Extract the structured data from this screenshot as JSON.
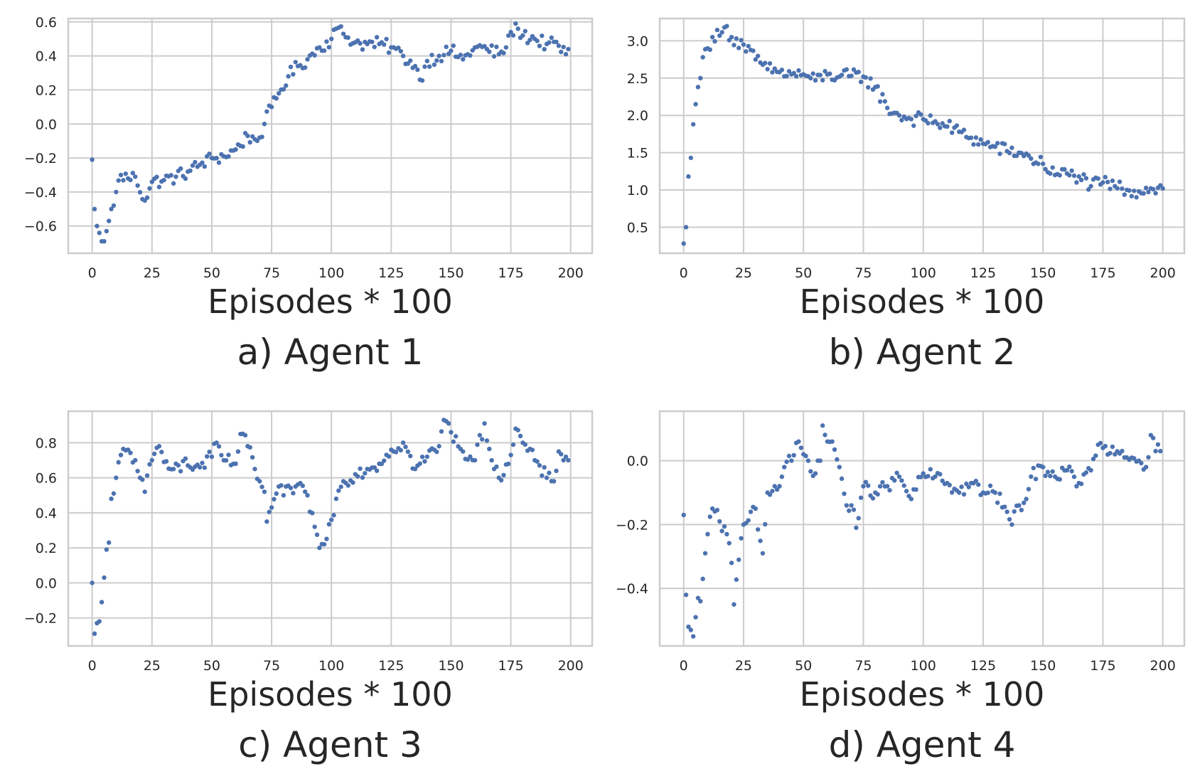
{
  "chart_data": [
    {
      "type": "scatter",
      "caption": "a) Agent 1",
      "xlabel": "Episodes * 100",
      "ylabel": "",
      "xlim": [
        -10,
        209
      ],
      "ylim": [
        -0.76,
        0.62
      ],
      "xticks": [
        0,
        25,
        50,
        75,
        100,
        125,
        150,
        175,
        200
      ],
      "xtick_labels": [
        "0",
        "25",
        "50",
        "75",
        "100",
        "125",
        "150",
        "175",
        "200"
      ],
      "yticks": [
        -0.6,
        -0.4,
        -0.2,
        0.0,
        0.2,
        0.4,
        0.6
      ],
      "ytick_labels": [
        "−0.6",
        "−0.4",
        "−0.2",
        "0.0",
        "0.2",
        "0.4",
        "0.6"
      ],
      "grid": true,
      "color": "#4c72b0",
      "key_points": [
        [
          0,
          -0.21
        ],
        [
          1,
          -0.5
        ],
        [
          2,
          -0.6
        ],
        [
          3,
          -0.64
        ],
        [
          4,
          -0.69
        ],
        [
          5,
          -0.69
        ],
        [
          6,
          -0.63
        ],
        [
          7,
          -0.57
        ],
        [
          8,
          -0.5
        ],
        [
          9,
          -0.48
        ],
        [
          10,
          -0.4
        ],
        [
          12,
          -0.3
        ],
        [
          15,
          -0.32
        ],
        [
          18,
          -0.31
        ],
        [
          22,
          -0.45
        ],
        [
          25,
          -0.34
        ],
        [
          30,
          -0.33
        ],
        [
          35,
          -0.31
        ],
        [
          40,
          -0.28
        ],
        [
          45,
          -0.24
        ],
        [
          50,
          -0.2
        ],
        [
          55,
          -0.19
        ],
        [
          60,
          -0.15
        ],
        [
          65,
          -0.07
        ],
        [
          68,
          -0.09
        ],
        [
          70,
          -0.08
        ],
        [
          72,
          0.0
        ],
        [
          75,
          0.1
        ],
        [
          78,
          0.18
        ],
        [
          82,
          0.28
        ],
        [
          86,
          0.34
        ],
        [
          90,
          0.38
        ],
        [
          95,
          0.45
        ],
        [
          100,
          0.5
        ],
        [
          102,
          0.56
        ],
        [
          105,
          0.53
        ],
        [
          110,
          0.48
        ],
        [
          115,
          0.47
        ],
        [
          120,
          0.47
        ],
        [
          125,
          0.45
        ],
        [
          130,
          0.4
        ],
        [
          135,
          0.34
        ],
        [
          137,
          0.26
        ],
        [
          140,
          0.37
        ],
        [
          145,
          0.4
        ],
        [
          150,
          0.43
        ],
        [
          155,
          0.38
        ],
        [
          160,
          0.45
        ],
        [
          165,
          0.44
        ],
        [
          170,
          0.41
        ],
        [
          173,
          0.45
        ],
        [
          175,
          0.54
        ],
        [
          178,
          0.56
        ],
        [
          180,
          0.52
        ],
        [
          185,
          0.5
        ],
        [
          190,
          0.47
        ],
        [
          195,
          0.46
        ],
        [
          198,
          0.41
        ],
        [
          199,
          0.44
        ]
      ]
    },
    {
      "type": "scatter",
      "caption": "b) Agent 2",
      "xlabel": "Episodes * 100",
      "ylabel": "",
      "xlim": [
        -10,
        209
      ],
      "ylim": [
        0.15,
        3.3
      ],
      "xticks": [
        0,
        25,
        50,
        75,
        100,
        125,
        150,
        175,
        200
      ],
      "xtick_labels": [
        "0",
        "25",
        "50",
        "75",
        "100",
        "125",
        "150",
        "175",
        "200"
      ],
      "yticks": [
        0.5,
        1.0,
        1.5,
        2.0,
        2.5,
        3.0
      ],
      "ytick_labels": [
        "0.5",
        "1.0",
        "1.5",
        "2.0",
        "2.5",
        "3.0"
      ],
      "grid": true,
      "color": "#4c72b0",
      "key_points": [
        [
          0,
          0.28
        ],
        [
          1,
          0.5
        ],
        [
          2,
          1.18
        ],
        [
          3,
          1.43
        ],
        [
          4,
          1.88
        ],
        [
          5,
          2.15
        ],
        [
          6,
          2.38
        ],
        [
          7,
          2.5
        ],
        [
          8,
          2.78
        ],
        [
          10,
          2.9
        ],
        [
          12,
          3.05
        ],
        [
          15,
          3.07
        ],
        [
          17,
          3.18
        ],
        [
          20,
          3.05
        ],
        [
          25,
          2.95
        ],
        [
          30,
          2.75
        ],
        [
          35,
          2.62
        ],
        [
          40,
          2.58
        ],
        [
          45,
          2.55
        ],
        [
          50,
          2.55
        ],
        [
          55,
          2.47
        ],
        [
          60,
          2.55
        ],
        [
          65,
          2.52
        ],
        [
          70,
          2.53
        ],
        [
          75,
          2.52
        ],
        [
          80,
          2.38
        ],
        [
          85,
          2.1
        ],
        [
          90,
          2.0
        ],
        [
          95,
          1.95
        ],
        [
          100,
          1.95
        ],
        [
          105,
          1.92
        ],
        [
          110,
          1.85
        ],
        [
          115,
          1.78
        ],
        [
          120,
          1.7
        ],
        [
          125,
          1.62
        ],
        [
          130,
          1.58
        ],
        [
          135,
          1.52
        ],
        [
          140,
          1.5
        ],
        [
          145,
          1.42
        ],
        [
          150,
          1.35
        ],
        [
          155,
          1.2
        ],
        [
          160,
          1.22
        ],
        [
          165,
          1.18
        ],
        [
          170,
          1.05
        ],
        [
          175,
          1.1
        ],
        [
          180,
          1.05
        ],
        [
          185,
          1.0
        ],
        [
          190,
          0.98
        ],
        [
          195,
          1.02
        ],
        [
          200,
          1.02
        ]
      ]
    },
    {
      "type": "scatter",
      "caption": "c) Agent 3",
      "xlabel": "Episodes * 100",
      "ylabel": "",
      "xlim": [
        -10,
        209
      ],
      "ylim": [
        -0.36,
        0.98
      ],
      "xticks": [
        0,
        25,
        50,
        75,
        100,
        125,
        150,
        175,
        200
      ],
      "xtick_labels": [
        "0",
        "25",
        "50",
        "75",
        "100",
        "125",
        "150",
        "175",
        "200"
      ],
      "yticks": [
        -0.2,
        0.0,
        0.2,
        0.4,
        0.6,
        0.8
      ],
      "ytick_labels": [
        "−0.2",
        "0.0",
        "0.2",
        "0.4",
        "0.6",
        "0.8"
      ],
      "grid": true,
      "color": "#4c72b0",
      "key_points": [
        [
          0,
          0.0
        ],
        [
          1,
          -0.29
        ],
        [
          2,
          -0.23
        ],
        [
          3,
          -0.22
        ],
        [
          4,
          -0.11
        ],
        [
          5,
          0.03
        ],
        [
          6,
          0.19
        ],
        [
          7,
          0.23
        ],
        [
          8,
          0.48
        ],
        [
          9,
          0.51
        ],
        [
          10,
          0.6
        ],
        [
          12,
          0.73
        ],
        [
          15,
          0.76
        ],
        [
          18,
          0.7
        ],
        [
          20,
          0.6
        ],
        [
          22,
          0.52
        ],
        [
          25,
          0.7
        ],
        [
          28,
          0.78
        ],
        [
          30,
          0.69
        ],
        [
          35,
          0.68
        ],
        [
          40,
          0.67
        ],
        [
          45,
          0.66
        ],
        [
          50,
          0.72
        ],
        [
          52,
          0.8
        ],
        [
          55,
          0.7
        ],
        [
          60,
          0.68
        ],
        [
          62,
          0.85
        ],
        [
          65,
          0.78
        ],
        [
          68,
          0.65
        ],
        [
          70,
          0.58
        ],
        [
          72,
          0.52
        ],
        [
          73,
          0.35
        ],
        [
          75,
          0.43
        ],
        [
          78,
          0.55
        ],
        [
          80,
          0.5
        ],
        [
          85,
          0.55
        ],
        [
          90,
          0.5
        ],
        [
          93,
          0.32
        ],
        [
          95,
          0.2
        ],
        [
          97,
          0.22
        ],
        [
          100,
          0.36
        ],
        [
          102,
          0.48
        ],
        [
          105,
          0.58
        ],
        [
          110,
          0.62
        ],
        [
          115,
          0.65
        ],
        [
          120,
          0.68
        ],
        [
          125,
          0.76
        ],
        [
          130,
          0.8
        ],
        [
          135,
          0.65
        ],
        [
          140,
          0.72
        ],
        [
          145,
          0.78
        ],
        [
          147,
          0.93
        ],
        [
          150,
          0.86
        ],
        [
          155,
          0.75
        ],
        [
          160,
          0.7
        ],
        [
          164,
          0.91
        ],
        [
          168,
          0.65
        ],
        [
          170,
          0.6
        ],
        [
          175,
          0.73
        ],
        [
          177,
          0.88
        ],
        [
          180,
          0.8
        ],
        [
          185,
          0.7
        ],
        [
          190,
          0.6
        ],
        [
          193,
          0.58
        ],
        [
          195,
          0.75
        ],
        [
          198,
          0.72
        ],
        [
          199,
          0.7
        ]
      ]
    },
    {
      "type": "scatter",
      "caption": "d) Agent 4",
      "xlabel": "Episodes * 100",
      "ylabel": "",
      "xlim": [
        -10,
        209
      ],
      "ylim": [
        -0.58,
        0.155
      ],
      "xticks": [
        0,
        25,
        50,
        75,
        100,
        125,
        150,
        175,
        200
      ],
      "xtick_labels": [
        "0",
        "25",
        "50",
        "75",
        "100",
        "125",
        "150",
        "175",
        "200"
      ],
      "yticks": [
        -0.4,
        -0.2,
        0.0
      ],
      "ytick_labels": [
        "−0.4",
        "−0.2",
        "0.0"
      ],
      "grid": true,
      "color": "#4c72b0",
      "key_points": [
        [
          0,
          -0.17
        ],
        [
          1,
          -0.42
        ],
        [
          2,
          -0.52
        ],
        [
          3,
          -0.53
        ],
        [
          4,
          -0.55
        ],
        [
          5,
          -0.49
        ],
        [
          6,
          -0.43
        ],
        [
          7,
          -0.44
        ],
        [
          8,
          -0.37
        ],
        [
          9,
          -0.29
        ],
        [
          10,
          -0.23
        ],
        [
          12,
          -0.15
        ],
        [
          15,
          -0.19
        ],
        [
          18,
          -0.23
        ],
        [
          20,
          -0.32
        ],
        [
          21,
          -0.45
        ],
        [
          23,
          -0.31
        ],
        [
          25,
          -0.2
        ],
        [
          28,
          -0.16
        ],
        [
          30,
          -0.15
        ],
        [
          33,
          -0.29
        ],
        [
          35,
          -0.1
        ],
        [
          38,
          -0.08
        ],
        [
          40,
          -0.08
        ],
        [
          42,
          -0.02
        ],
        [
          45,
          0.0
        ],
        [
          48,
          0.06
        ],
        [
          50,
          0.02
        ],
        [
          52,
          0.0
        ],
        [
          55,
          -0.04
        ],
        [
          57,
          0.0
        ],
        [
          58,
          0.11
        ],
        [
          60,
          0.06
        ],
        [
          62,
          0.06
        ],
        [
          65,
          -0.02
        ],
        [
          68,
          -0.14
        ],
        [
          70,
          -0.14
        ],
        [
          72,
          -0.21
        ],
        [
          73,
          -0.18
        ],
        [
          75,
          -0.08
        ],
        [
          80,
          -0.1
        ],
        [
          85,
          -0.08
        ],
        [
          90,
          -0.05
        ],
        [
          95,
          -0.12
        ],
        [
          100,
          -0.04
        ],
        [
          105,
          -0.05
        ],
        [
          110,
          -0.07
        ],
        [
          115,
          -0.1
        ],
        [
          120,
          -0.07
        ],
        [
          125,
          -0.1
        ],
        [
          130,
          -0.1
        ],
        [
          135,
          -0.16
        ],
        [
          137,
          -0.2
        ],
        [
          140,
          -0.14
        ],
        [
          143,
          -0.12
        ],
        [
          145,
          -0.05
        ],
        [
          150,
          -0.02
        ],
        [
          155,
          -0.05
        ],
        [
          160,
          -0.03
        ],
        [
          165,
          -0.07
        ],
        [
          170,
          -0.03
        ],
        [
          173,
          0.05
        ],
        [
          175,
          0.04
        ],
        [
          180,
          0.02
        ],
        [
          185,
          0.01
        ],
        [
          190,
          0.0
        ],
        [
          193,
          -0.02
        ],
        [
          195,
          0.08
        ],
        [
          197,
          0.03
        ],
        [
          199,
          0.03
        ]
      ]
    }
  ]
}
